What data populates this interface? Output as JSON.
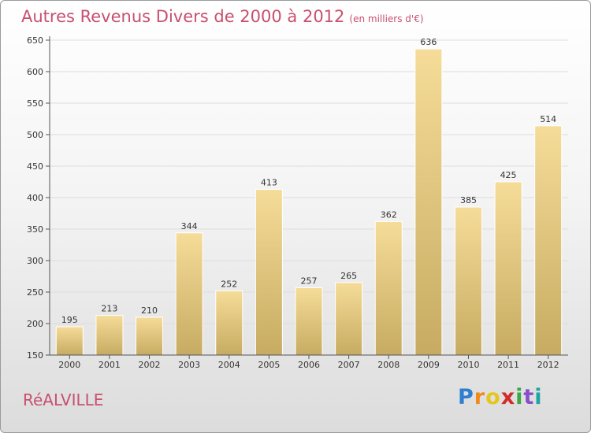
{
  "header": {
    "title": "Autres Revenus Divers de 2000 à 2012",
    "subtitle": "(en milliers d'€)"
  },
  "footer": {
    "place": "RéALVILLE",
    "logo_letters": [
      "P",
      "r",
      "o",
      "x",
      "i",
      "t",
      "i"
    ]
  },
  "chart_data": {
    "type": "bar",
    "title": "Autres Revenus Divers de 2000 à 2012",
    "subtitle": "(en milliers d'€)",
    "xlabel": "",
    "ylabel": "",
    "categories": [
      "2000",
      "2001",
      "2002",
      "2003",
      "2004",
      "2005",
      "2006",
      "2007",
      "2008",
      "2009",
      "2010",
      "2011",
      "2012"
    ],
    "values": [
      195,
      213,
      210,
      344,
      252,
      413,
      257,
      265,
      362,
      636,
      385,
      425,
      514
    ],
    "ylim": [
      150,
      650
    ],
    "yticks": [
      150,
      200,
      250,
      300,
      350,
      400,
      450,
      500,
      550,
      600,
      650
    ],
    "grid": true,
    "legend": "none",
    "colors": {
      "bar_top": "#f5dc98",
      "bar_bottom": "#c7ab62",
      "title": "#c8506e",
      "grid": "#dddddd"
    }
  }
}
